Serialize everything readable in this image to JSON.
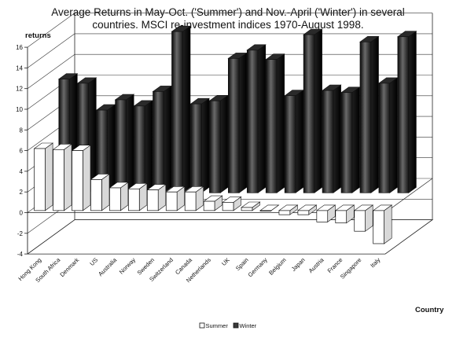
{
  "chart_data": {
    "type": "bar",
    "title_line1": "Average Returns in May-Oct. ('Summer') and Nov.-April ('Winter') in several",
    "title_line2": "countries. MSCI re-investment indices 1970-August 1998.",
    "ylabel": "returns",
    "xlabel": "Country",
    "ylim": [
      -4,
      16
    ],
    "yticks": [
      -4,
      -2,
      0,
      2,
      4,
      6,
      8,
      10,
      12,
      14,
      16
    ],
    "grid": true,
    "legend_position": "bottom-center",
    "categories": [
      "Hong Kong",
      "South Africa",
      "Denmark",
      "US",
      "Australia",
      "Norway",
      "Sweden",
      "Switzerland",
      "Canada",
      "Netherlands",
      "UK",
      "Spain",
      "Germany",
      "Belgium",
      "Japan",
      "Austria",
      "France",
      "Singapore",
      "Italy"
    ],
    "series": [
      {
        "name": "Summer",
        "color": "#ffffff",
        "values": [
          6.0,
          5.9,
          5.8,
          3.0,
          2.2,
          2.1,
          2.0,
          1.8,
          1.8,
          0.9,
          0.8,
          0.3,
          0.0,
          -0.4,
          -0.4,
          -1.1,
          -1.2,
          -2.0,
          -3.2
        ]
      },
      {
        "name": "Winter",
        "color": "#3a3a3a",
        "values": [
          11.0,
          10.6,
          8.0,
          9.0,
          8.4,
          9.8,
          15.6,
          8.6,
          8.9,
          13.0,
          13.8,
          12.9,
          9.4,
          15.3,
          9.9,
          9.7,
          14.6,
          10.6,
          15.1
        ]
      }
    ]
  }
}
